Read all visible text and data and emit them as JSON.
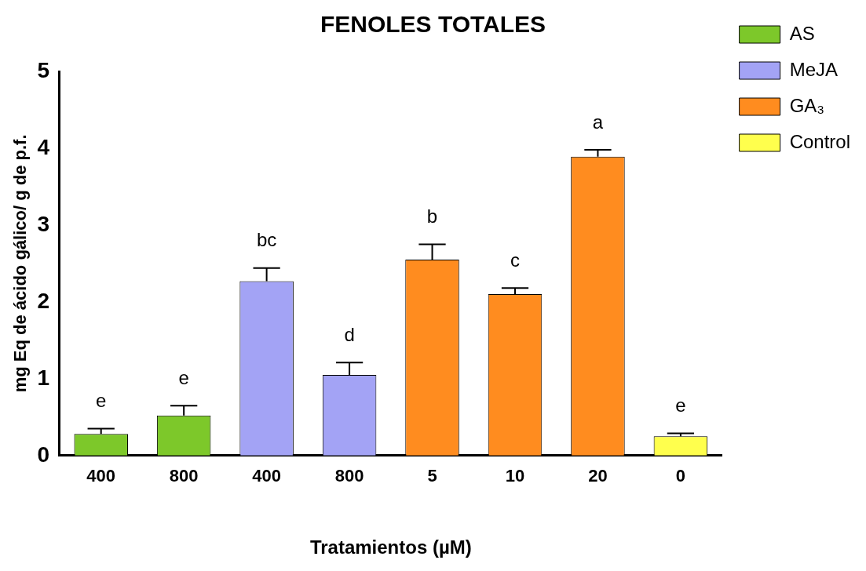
{
  "chart_data": {
    "type": "bar",
    "title": "FENOLES TOTALES",
    "xlabel": "Tratamientos (µM)",
    "ylabel": "mg Eq de ácido gálico/ g de p.f.",
    "categories": [
      "400",
      "800",
      "400",
      "800",
      "5",
      "10",
      "20",
      "0"
    ],
    "series": [
      {
        "name": "AS",
        "color": "#7dc82a",
        "values": [
          0.28,
          0.52,
          null,
          null,
          null,
          null,
          null,
          null
        ],
        "errors": [
          [
            0.28,
            0.35
          ],
          [
            0.52,
            0.65
          ],
          null,
          null,
          null,
          null,
          null,
          null
        ],
        "value_labels": [
          "e",
          "e",
          null,
          null,
          null,
          null,
          null,
          null
        ]
      },
      {
        "name": "MeJA",
        "color": "#a3a3f5",
        "values": [
          null,
          null,
          2.27,
          1.05,
          null,
          null,
          null,
          null
        ],
        "errors": [
          null,
          null,
          [
            2.27,
            2.44
          ],
          [
            1.05,
            1.21
          ],
          null,
          null,
          null,
          null
        ],
        "value_labels": [
          null,
          null,
          "bc",
          "d",
          null,
          null,
          null,
          null
        ]
      },
      {
        "name": "GA₃",
        "color": "#ff8c1f",
        "values": [
          null,
          null,
          null,
          null,
          2.55,
          2.1,
          3.89,
          null
        ],
        "errors": [
          null,
          null,
          null,
          null,
          [
            2.55,
            2.75
          ],
          [
            2.1,
            2.18
          ],
          [
            3.89,
            3.98
          ],
          null
        ],
        "value_labels": [
          null,
          null,
          null,
          null,
          "b",
          "c",
          "a",
          null
        ]
      },
      {
        "name": "Control",
        "color": "#ffff4d",
        "values": [
          null,
          null,
          null,
          null,
          null,
          null,
          null,
          0.25
        ],
        "errors": [
          null,
          null,
          null,
          null,
          null,
          null,
          null,
          [
            0.25,
            0.29
          ]
        ],
        "value_labels": [
          null,
          null,
          null,
          null,
          null,
          null,
          null,
          "e"
        ]
      }
    ],
    "ylim": [
      0,
      5
    ],
    "yticks": [
      0,
      1,
      2,
      3,
      4,
      5
    ],
    "grid": false,
    "legend": "right"
  }
}
